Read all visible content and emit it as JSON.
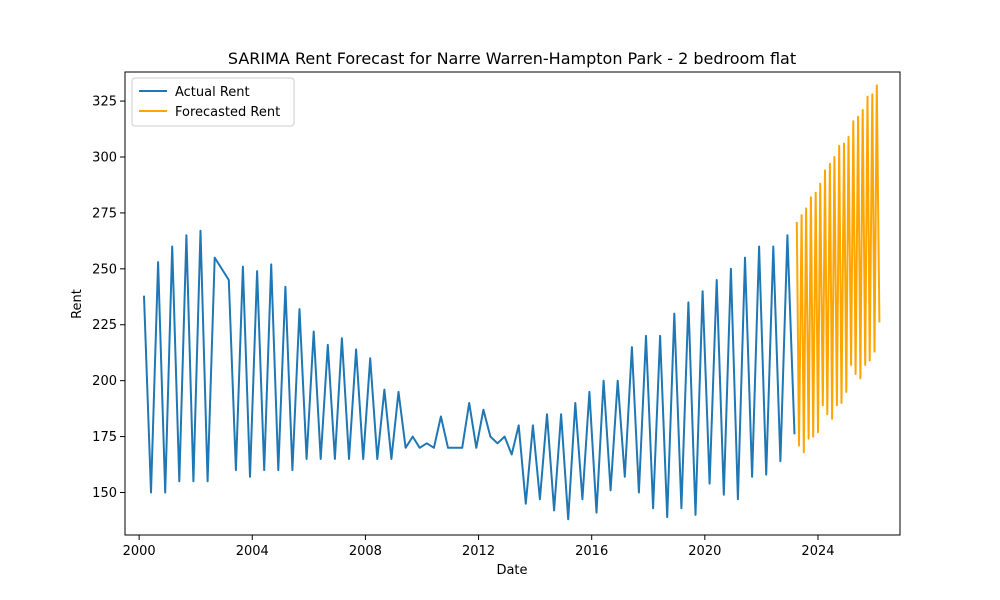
{
  "chart_data": {
    "type": "line",
    "title": "SARIMA Rent Forecast for Narre Warren-Hampton Park - 2 bedroom flat",
    "xlabel": "Date",
    "ylabel": "Rent",
    "xlim": [
      1999.5,
      2026.9
    ],
    "ylim": [
      131,
      338
    ],
    "xticks": [
      2000,
      2004,
      2008,
      2012,
      2016,
      2020,
      2024
    ],
    "yticks": [
      150,
      175,
      200,
      225,
      250,
      275,
      300,
      325
    ],
    "grid": false,
    "legend_position": "top-left",
    "series": [
      {
        "name": "Actual Rent",
        "color": "#1f77b4",
        "points": [
          [
            2000.17,
            238
          ],
          [
            2000.42,
            150
          ],
          [
            2000.67,
            253
          ],
          [
            2000.92,
            150
          ],
          [
            2001.17,
            260
          ],
          [
            2001.42,
            155
          ],
          [
            2001.67,
            265
          ],
          [
            2001.92,
            155
          ],
          [
            2002.17,
            267
          ],
          [
            2002.42,
            155
          ],
          [
            2002.67,
            255
          ],
          [
            2003.17,
            245
          ],
          [
            2003.42,
            160
          ],
          [
            2003.67,
            251
          ],
          [
            2003.92,
            157
          ],
          [
            2004.17,
            249
          ],
          [
            2004.42,
            160
          ],
          [
            2004.67,
            252
          ],
          [
            2004.92,
            160
          ],
          [
            2005.17,
            242
          ],
          [
            2005.42,
            160
          ],
          [
            2005.67,
            232
          ],
          [
            2005.92,
            165
          ],
          [
            2006.17,
            222
          ],
          [
            2006.42,
            165
          ],
          [
            2006.67,
            216
          ],
          [
            2006.92,
            165
          ],
          [
            2007.17,
            219
          ],
          [
            2007.42,
            165
          ],
          [
            2007.67,
            214
          ],
          [
            2007.92,
            165
          ],
          [
            2008.17,
            210
          ],
          [
            2008.42,
            165
          ],
          [
            2008.67,
            196
          ],
          [
            2008.92,
            165
          ],
          [
            2009.17,
            195
          ],
          [
            2009.42,
            170
          ],
          [
            2009.67,
            175
          ],
          [
            2009.92,
            170
          ],
          [
            2010.17,
            172
          ],
          [
            2010.42,
            170
          ],
          [
            2010.67,
            184
          ],
          [
            2010.92,
            170
          ],
          [
            2011.17,
            170
          ],
          [
            2011.42,
            170
          ],
          [
            2011.67,
            190
          ],
          [
            2011.92,
            170
          ],
          [
            2012.17,
            187
          ],
          [
            2012.42,
            175
          ],
          [
            2012.67,
            172
          ],
          [
            2012.92,
            175
          ],
          [
            2013.17,
            167
          ],
          [
            2013.42,
            180
          ],
          [
            2013.67,
            145
          ],
          [
            2013.92,
            180
          ],
          [
            2014.17,
            147
          ],
          [
            2014.42,
            185
          ],
          [
            2014.67,
            142
          ],
          [
            2014.92,
            185
          ],
          [
            2015.17,
            138
          ],
          [
            2015.42,
            190
          ],
          [
            2015.67,
            147
          ],
          [
            2015.92,
            195
          ],
          [
            2016.17,
            141
          ],
          [
            2016.42,
            200
          ],
          [
            2016.67,
            151
          ],
          [
            2016.92,
            200
          ],
          [
            2017.17,
            157
          ],
          [
            2017.42,
            215
          ],
          [
            2017.67,
            150
          ],
          [
            2017.92,
            220
          ],
          [
            2018.17,
            143
          ],
          [
            2018.42,
            220
          ],
          [
            2018.67,
            139
          ],
          [
            2018.92,
            230
          ],
          [
            2019.17,
            143
          ],
          [
            2019.42,
            235
          ],
          [
            2019.67,
            140
          ],
          [
            2019.92,
            240
          ],
          [
            2020.17,
            154
          ],
          [
            2020.42,
            245
          ],
          [
            2020.67,
            149
          ],
          [
            2020.92,
            250
          ],
          [
            2021.17,
            147
          ],
          [
            2021.42,
            255
          ],
          [
            2021.67,
            157
          ],
          [
            2021.92,
            260
          ],
          [
            2022.17,
            158
          ],
          [
            2022.42,
            260
          ],
          [
            2022.67,
            164
          ],
          [
            2022.92,
            265
          ],
          [
            2023.17,
            176
          ]
        ]
      },
      {
        "name": "Forecasted Rent",
        "color": "#ffa500",
        "points": [
          [
            2023.25,
            271
          ],
          [
            2023.33,
            171
          ],
          [
            2023.42,
            274
          ],
          [
            2023.5,
            168
          ],
          [
            2023.58,
            277
          ],
          [
            2023.67,
            174
          ],
          [
            2023.75,
            282
          ],
          [
            2023.83,
            175
          ],
          [
            2023.92,
            284
          ],
          [
            2024.0,
            177
          ],
          [
            2024.08,
            288
          ],
          [
            2024.17,
            189
          ],
          [
            2024.25,
            294
          ],
          [
            2024.33,
            185
          ],
          [
            2024.42,
            297
          ],
          [
            2024.5,
            183
          ],
          [
            2024.58,
            300
          ],
          [
            2024.67,
            189
          ],
          [
            2024.75,
            305
          ],
          [
            2024.83,
            190
          ],
          [
            2024.92,
            306
          ],
          [
            2025.0,
            195
          ],
          [
            2025.08,
            309
          ],
          [
            2025.17,
            207
          ],
          [
            2025.25,
            316
          ],
          [
            2025.33,
            203
          ],
          [
            2025.42,
            318
          ],
          [
            2025.5,
            201
          ],
          [
            2025.58,
            321
          ],
          [
            2025.67,
            207
          ],
          [
            2025.75,
            327
          ],
          [
            2025.83,
            209
          ],
          [
            2025.92,
            328
          ],
          [
            2026.0,
            213
          ],
          [
            2026.08,
            332
          ],
          [
            2026.17,
            226
          ]
        ]
      }
    ]
  }
}
